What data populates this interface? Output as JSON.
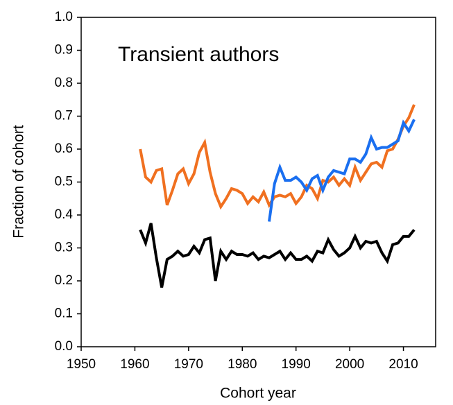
{
  "chart_data": {
    "type": "line",
    "annotation": "Transient authors",
    "x_label": "Cohort year",
    "y_label": "Fraction of cohort",
    "xlim": [
      1950,
      2016
    ],
    "xticks": [
      1950,
      1960,
      1970,
      1980,
      1990,
      2000,
      2010
    ],
    "ylim": [
      0,
      1
    ],
    "yticks": [
      {
        "value": 0,
        "label": "0.0"
      },
      0.1,
      0.2,
      0.3,
      0.4,
      0.5,
      0.6,
      0.7,
      0.8,
      0.9,
      {
        "value": 1,
        "label": "1.0"
      }
    ],
    "grid": false,
    "series": [
      {
        "color": "#f07020",
        "x": [
          1961,
          1962,
          1963,
          1964,
          1965,
          1966,
          1967,
          1968,
          1969,
          1970,
          1971,
          1972,
          1973,
          1974,
          1975,
          1976,
          1977,
          1978,
          1979,
          1980,
          1981,
          1982,
          1983,
          1984,
          1985,
          1986,
          1987,
          1988,
          1989,
          1990,
          1991,
          1992,
          1993,
          1994,
          1995,
          1996,
          1997,
          1998,
          1999,
          2000,
          2001,
          2002,
          2003,
          2004,
          2005,
          2006,
          2007,
          2008,
          2009,
          2010,
          2011,
          2012
        ],
        "values": [
          0.6,
          0.515,
          0.5,
          0.535,
          0.54,
          0.43,
          0.475,
          0.525,
          0.54,
          0.495,
          0.525,
          0.59,
          0.62,
          0.53,
          0.465,
          0.425,
          0.45,
          0.48,
          0.475,
          0.465,
          0.435,
          0.455,
          0.44,
          0.47,
          0.43,
          0.455,
          0.46,
          0.455,
          0.465,
          0.435,
          0.455,
          0.49,
          0.48,
          0.45,
          0.505,
          0.5,
          0.515,
          0.49,
          0.51,
          0.49,
          0.545,
          0.505,
          0.53,
          0.555,
          0.56,
          0.545,
          0.595,
          0.6,
          0.63,
          0.67,
          0.695,
          0.735
        ]
      },
      {
        "color": "#1a6ff0",
        "x": [
          1985,
          1986,
          1987,
          1988,
          1989,
          1990,
          1991,
          1992,
          1993,
          1994,
          1995,
          1996,
          1997,
          1998,
          1999,
          2000,
          2001,
          2002,
          2003,
          2004,
          2005,
          2006,
          2007,
          2008,
          2009,
          2010,
          2011,
          2012
        ],
        "values": [
          0.38,
          0.495,
          0.545,
          0.505,
          0.505,
          0.515,
          0.5,
          0.475,
          0.51,
          0.52,
          0.475,
          0.515,
          0.535,
          0.53,
          0.525,
          0.57,
          0.57,
          0.56,
          0.585,
          0.635,
          0.6,
          0.605,
          0.605,
          0.615,
          0.625,
          0.68,
          0.655,
          0.69
        ]
      },
      {
        "color": "#000000",
        "x": [
          1961,
          1962,
          1963,
          1964,
          1965,
          1966,
          1967,
          1968,
          1969,
          1970,
          1971,
          1972,
          1973,
          1974,
          1975,
          1976,
          1977,
          1978,
          1979,
          1980,
          1981,
          1982,
          1983,
          1984,
          1985,
          1986,
          1987,
          1988,
          1989,
          1990,
          1991,
          1992,
          1993,
          1994,
          1995,
          1996,
          1997,
          1998,
          1999,
          2000,
          2001,
          2002,
          2003,
          2004,
          2005,
          2006,
          2007,
          2008,
          2009,
          2010,
          2011,
          2012
        ],
        "values": [
          0.355,
          0.315,
          0.375,
          0.27,
          0.18,
          0.265,
          0.275,
          0.29,
          0.275,
          0.28,
          0.305,
          0.285,
          0.325,
          0.33,
          0.2,
          0.29,
          0.265,
          0.29,
          0.28,
          0.28,
          0.275,
          0.285,
          0.265,
          0.275,
          0.27,
          0.28,
          0.29,
          0.265,
          0.285,
          0.265,
          0.265,
          0.275,
          0.26,
          0.29,
          0.285,
          0.325,
          0.295,
          0.275,
          0.285,
          0.3,
          0.335,
          0.3,
          0.32,
          0.315,
          0.32,
          0.285,
          0.26,
          0.31,
          0.315,
          0.335,
          0.335,
          0.355
        ]
      }
    ]
  }
}
